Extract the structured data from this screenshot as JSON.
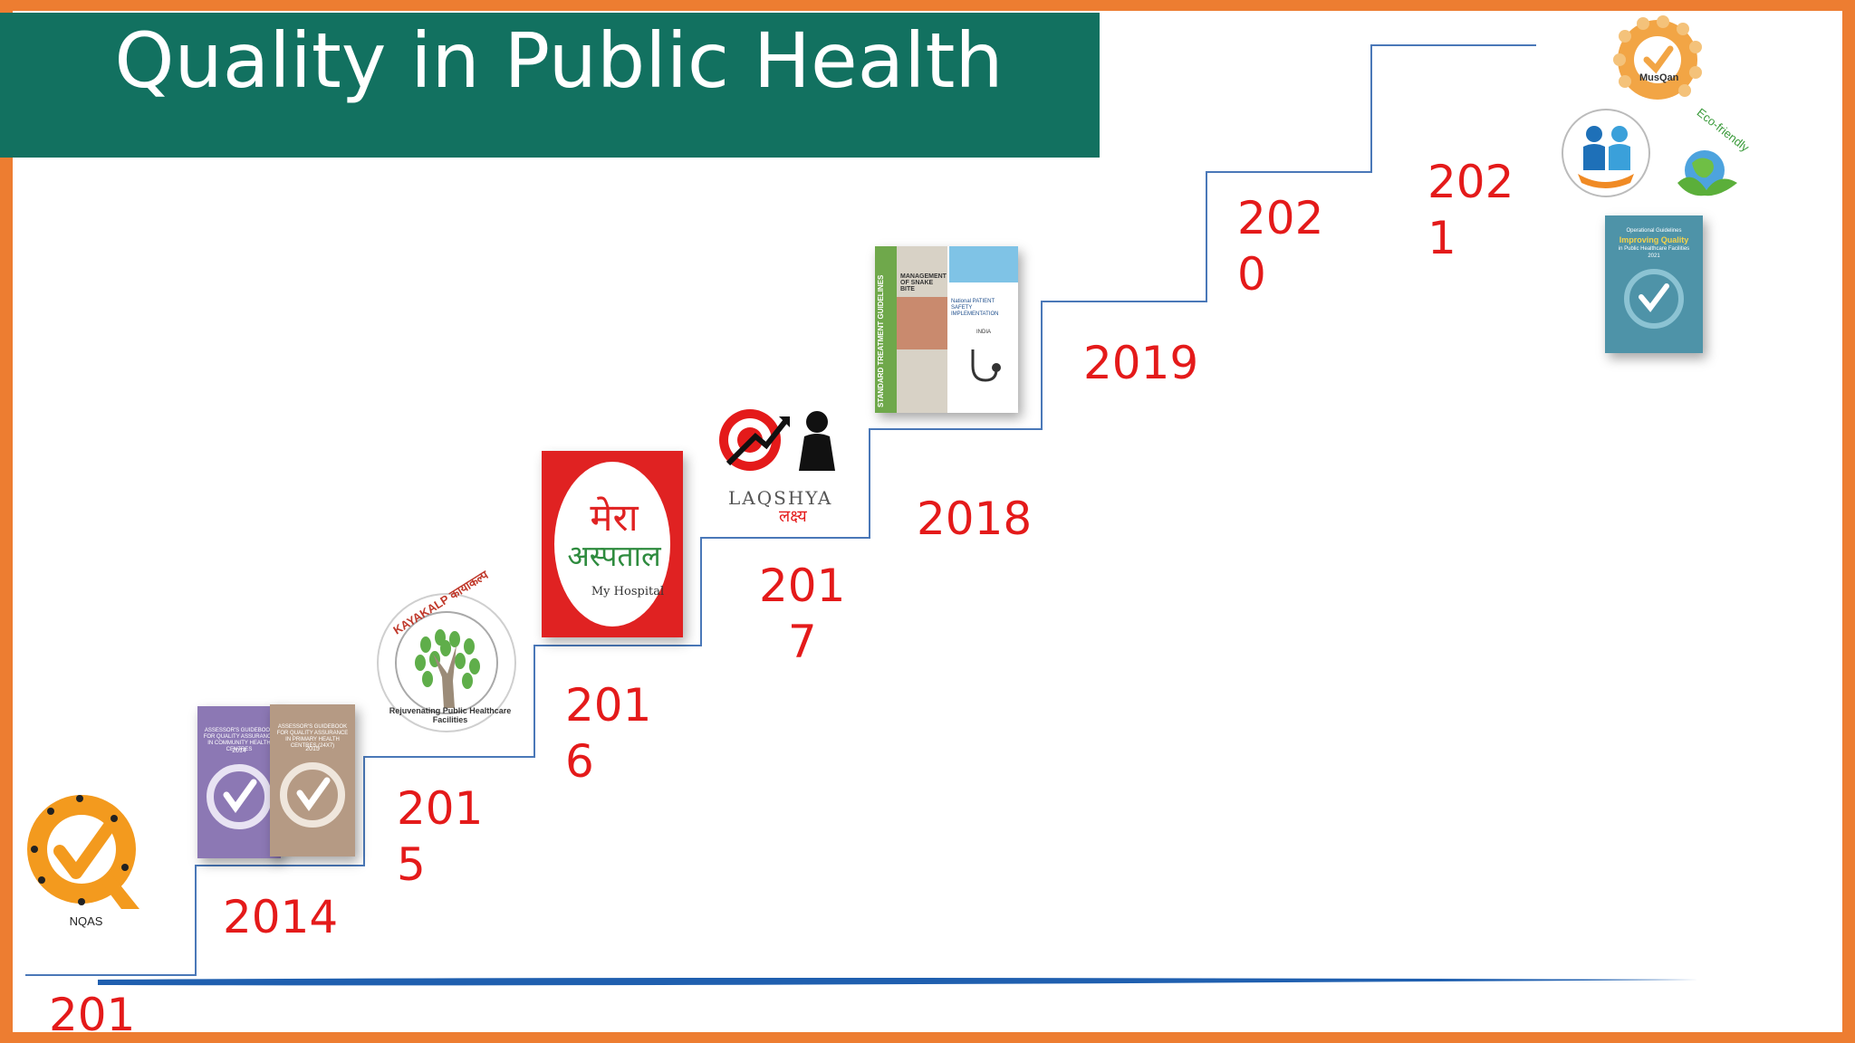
{
  "slide": {
    "title": "Quality in Public Health",
    "accent_color": "#ED7D31",
    "banner_color": "#127160",
    "year_color": "#E41A1A"
  },
  "timeline": {
    "years": [
      {
        "label": "201"
      },
      {
        "label": "2014"
      },
      {
        "label": "201\n5"
      },
      {
        "label": "201\n6"
      },
      {
        "label": "201\n7"
      },
      {
        "label": "2018"
      },
      {
        "label": "2019"
      },
      {
        "label": "202\n0"
      },
      {
        "label": "202\n1"
      }
    ]
  },
  "logos": {
    "nqas": {
      "caption": "NQAS",
      "icon": "nqas-logo"
    },
    "assessor_guidebooks": {
      "icon": "guidebook-covers",
      "book1_title": "ASSESSOR'S GUIDEBOOK FOR QUALITY ASSURANCE IN COMMUNITY HEALTH CENTRES",
      "book1_year": "2014",
      "book2_title": "ASSESSOR'S GUIDEBOOK FOR QUALITY ASSURANCE IN PRIMARY HEALTH CENTRES (24X7)",
      "book2_year": "2015"
    },
    "kayakalp": {
      "icon": "kayakalp-logo",
      "top_text": "KAYAKALP कायाकल्प",
      "bottom_text": "Rejuvenating Public Healthcare Facilities"
    },
    "mera_aspatal": {
      "icon": "mera-aspatal-logo",
      "line1": "मेरा",
      "line2": "अस्पताल",
      "caption": "My Hospital"
    },
    "laqshya": {
      "icon": "laqshya-logo",
      "name": "LAQSHYA",
      "hindi": "लक्ष्य"
    },
    "guidelines": {
      "icon": "guideline-books",
      "spine": "STANDARD TREATMENT GUIDELINES",
      "snake_bite": "MANAGEMENT OF SNAKE BITE",
      "patient_safety": "National PATIENT SAFETY IMPLEMENTATION",
      "india": "INDIA"
    },
    "muskan": {
      "icon": "muskan-logo",
      "name": "MusQan"
    },
    "support": {
      "icon": "people-support-icon"
    },
    "eco_friendly": {
      "icon": "eco-friendly-globe-icon",
      "label": "Eco-friendly"
    },
    "improving_quality": {
      "icon": "improving-quality-book",
      "line1": "Operational Guidelines",
      "line2": "Improving Quality",
      "line3": "in Public Healthcare Facilities",
      "year": "2021"
    }
  }
}
